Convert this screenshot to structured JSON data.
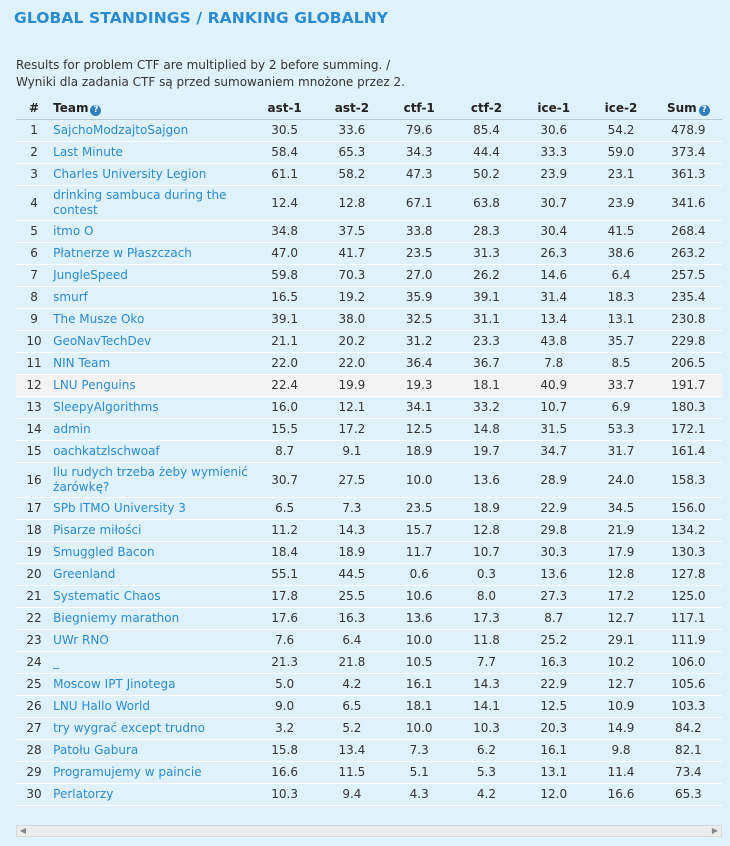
{
  "title": "GLOBAL STANDINGS / RANKING GLOBALNY",
  "note_line1": "Results for problem CTF are multiplied by 2 before summing. /",
  "note_line2": "Wyniki dla zadania CTF są przed sumowaniem mnożone przez 2.",
  "help_glyph": "?",
  "scroll_left": "◀",
  "scroll_right": "▶",
  "headers": {
    "rank": "#",
    "team": "Team",
    "ast1": "ast-1",
    "ast2": "ast-2",
    "ctf1": "ctf-1",
    "ctf2": "ctf-2",
    "ice1": "ice-1",
    "ice2": "ice-2",
    "sum": "Sum"
  },
  "rows": [
    {
      "rank": "1",
      "team": "SajchoModzajtoSajgon",
      "ast1": "30.5",
      "ast2": "33.6",
      "ctf1": "79.6",
      "ctf2": "85.4",
      "ice1": "30.6",
      "ice2": "54.2",
      "sum": "478.9"
    },
    {
      "rank": "2",
      "team": "Last Minute",
      "ast1": "58.4",
      "ast2": "65.3",
      "ctf1": "34.3",
      "ctf2": "44.4",
      "ice1": "33.3",
      "ice2": "59.0",
      "sum": "373.4"
    },
    {
      "rank": "3",
      "team": "Charles University Legion",
      "ast1": "61.1",
      "ast2": "58.2",
      "ctf1": "47.3",
      "ctf2": "50.2",
      "ice1": "23.9",
      "ice2": "23.1",
      "sum": "361.3"
    },
    {
      "rank": "4",
      "team": "drinking sambuca during the contest",
      "ast1": "12.4",
      "ast2": "12.8",
      "ctf1": "67.1",
      "ctf2": "63.8",
      "ice1": "30.7",
      "ice2": "23.9",
      "sum": "341.6"
    },
    {
      "rank": "5",
      "team": "itmo O",
      "ast1": "34.8",
      "ast2": "37.5",
      "ctf1": "33.8",
      "ctf2": "28.3",
      "ice1": "30.4",
      "ice2": "41.5",
      "sum": "268.4"
    },
    {
      "rank": "6",
      "team": "Płatnerze w Płaszczach",
      "ast1": "47.0",
      "ast2": "41.7",
      "ctf1": "23.5",
      "ctf2": "31.3",
      "ice1": "26.3",
      "ice2": "38.6",
      "sum": "263.2"
    },
    {
      "rank": "7",
      "team": "JungleSpeed",
      "ast1": "59.8",
      "ast2": "70.3",
      "ctf1": "27.0",
      "ctf2": "26.2",
      "ice1": "14.6",
      "ice2": "6.4",
      "sum": "257.5"
    },
    {
      "rank": "8",
      "team": "smurf",
      "ast1": "16.5",
      "ast2": "19.2",
      "ctf1": "35.9",
      "ctf2": "39.1",
      "ice1": "31.4",
      "ice2": "18.3",
      "sum": "235.4"
    },
    {
      "rank": "9",
      "team": "The Musze Oko",
      "ast1": "39.1",
      "ast2": "38.0",
      "ctf1": "32.5",
      "ctf2": "31.1",
      "ice1": "13.4",
      "ice2": "13.1",
      "sum": "230.8"
    },
    {
      "rank": "10",
      "team": "GeoNavTechDev",
      "ast1": "21.1",
      "ast2": "20.2",
      "ctf1": "31.2",
      "ctf2": "23.3",
      "ice1": "43.8",
      "ice2": "35.7",
      "sum": "229.8"
    },
    {
      "rank": "11",
      "team": "NIN Team",
      "ast1": "22.0",
      "ast2": "22.0",
      "ctf1": "36.4",
      "ctf2": "36.7",
      "ice1": "7.8",
      "ice2": "8.5",
      "sum": "206.5"
    },
    {
      "rank": "12",
      "team": "LNU Penguins",
      "ast1": "22.4",
      "ast2": "19.9",
      "ctf1": "19.3",
      "ctf2": "18.1",
      "ice1": "40.9",
      "ice2": "33.7",
      "sum": "191.7",
      "highlight": true
    },
    {
      "rank": "13",
      "team": "SleepyAlgorithms",
      "ast1": "16.0",
      "ast2": "12.1",
      "ctf1": "34.1",
      "ctf2": "33.2",
      "ice1": "10.7",
      "ice2": "6.9",
      "sum": "180.3"
    },
    {
      "rank": "14",
      "team": "admin",
      "ast1": "15.5",
      "ast2": "17.2",
      "ctf1": "12.5",
      "ctf2": "14.8",
      "ice1": "31.5",
      "ice2": "53.3",
      "sum": "172.1"
    },
    {
      "rank": "15",
      "team": "oachkatzlschwoaf",
      "ast1": "8.7",
      "ast2": "9.1",
      "ctf1": "18.9",
      "ctf2": "19.7",
      "ice1": "34.7",
      "ice2": "31.7",
      "sum": "161.4"
    },
    {
      "rank": "16",
      "team": "Ilu rudych trzeba żeby wymienić żarówkę?",
      "ast1": "30.7",
      "ast2": "27.5",
      "ctf1": "10.0",
      "ctf2": "13.6",
      "ice1": "28.9",
      "ice2": "24.0",
      "sum": "158.3"
    },
    {
      "rank": "17",
      "team": "SPb ITMO University 3",
      "ast1": "6.5",
      "ast2": "7.3",
      "ctf1": "23.5",
      "ctf2": "18.9",
      "ice1": "22.9",
      "ice2": "34.5",
      "sum": "156.0"
    },
    {
      "rank": "18",
      "team": "Pisarze miłości",
      "ast1": "11.2",
      "ast2": "14.3",
      "ctf1": "15.7",
      "ctf2": "12.8",
      "ice1": "29.8",
      "ice2": "21.9",
      "sum": "134.2"
    },
    {
      "rank": "19",
      "team": "Smuggled Bacon",
      "ast1": "18.4",
      "ast2": "18.9",
      "ctf1": "11.7",
      "ctf2": "10.7",
      "ice1": "30.3",
      "ice2": "17.9",
      "sum": "130.3"
    },
    {
      "rank": "20",
      "team": "Greenland",
      "ast1": "55.1",
      "ast2": "44.5",
      "ctf1": "0.6",
      "ctf2": "0.3",
      "ice1": "13.6",
      "ice2": "12.8",
      "sum": "127.8"
    },
    {
      "rank": "21",
      "team": "Systematic Chaos",
      "ast1": "17.8",
      "ast2": "25.5",
      "ctf1": "10.6",
      "ctf2": "8.0",
      "ice1": "27.3",
      "ice2": "17.2",
      "sum": "125.0"
    },
    {
      "rank": "22",
      "team": "Biegniemy marathon",
      "ast1": "17.6",
      "ast2": "16.3",
      "ctf1": "13.6",
      "ctf2": "17.3",
      "ice1": "8.7",
      "ice2": "12.7",
      "sum": "117.1"
    },
    {
      "rank": "23",
      "team": "UWr RNO",
      "ast1": "7.6",
      "ast2": "6.4",
      "ctf1": "10.0",
      "ctf2": "11.8",
      "ice1": "25.2",
      "ice2": "29.1",
      "sum": "111.9"
    },
    {
      "rank": "24",
      "team": "_",
      "ast1": "21.3",
      "ast2": "21.8",
      "ctf1": "10.5",
      "ctf2": "7.7",
      "ice1": "16.3",
      "ice2": "10.2",
      "sum": "106.0"
    },
    {
      "rank": "25",
      "team": "Moscow IPT Jinotega",
      "ast1": "5.0",
      "ast2": "4.2",
      "ctf1": "16.1",
      "ctf2": "14.3",
      "ice1": "22.9",
      "ice2": "12.7",
      "sum": "105.6"
    },
    {
      "rank": "26",
      "team": "LNU Hallo World",
      "ast1": "9.0",
      "ast2": "6.5",
      "ctf1": "18.1",
      "ctf2": "14.1",
      "ice1": "12.5",
      "ice2": "10.9",
      "sum": "103.3"
    },
    {
      "rank": "27",
      "team": "try wygrać except trudno",
      "ast1": "3.2",
      "ast2": "5.2",
      "ctf1": "10.0",
      "ctf2": "10.3",
      "ice1": "20.3",
      "ice2": "14.9",
      "sum": "84.2"
    },
    {
      "rank": "28",
      "team": "Patołu Gabura",
      "ast1": "15.8",
      "ast2": "13.4",
      "ctf1": "7.3",
      "ctf2": "6.2",
      "ice1": "16.1",
      "ice2": "9.8",
      "sum": "82.1"
    },
    {
      "rank": "29",
      "team": "Programujemy w paincie",
      "ast1": "16.6",
      "ast2": "11.5",
      "ctf1": "5.1",
      "ctf2": "5.3",
      "ice1": "13.1",
      "ice2": "11.4",
      "sum": "73.4"
    },
    {
      "rank": "30",
      "team": "Perlatorzy",
      "ast1": "10.3",
      "ast2": "9.4",
      "ctf1": "4.3",
      "ctf2": "4.2",
      "ice1": "12.0",
      "ice2": "16.6",
      "sum": "65.3"
    }
  ]
}
